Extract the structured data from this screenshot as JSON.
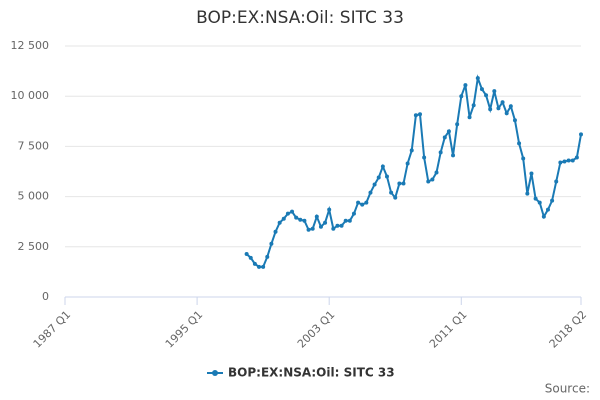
{
  "chart_data": {
    "type": "line",
    "title": "BOP:EX:NSA:Oil: SITC 33",
    "categories": [
      "1987 Q1",
      null,
      null,
      null,
      null,
      null,
      null,
      null,
      null,
      null,
      null,
      null,
      null,
      null,
      null,
      null,
      null,
      null,
      null,
      null,
      null,
      null,
      null,
      null,
      null,
      null,
      null,
      null,
      null,
      null,
      null,
      null,
      "1995 Q1",
      null,
      null,
      null,
      null,
      null,
      null,
      null,
      null,
      null,
      null,
      null,
      null,
      null,
      null,
      null,
      null,
      null,
      null,
      null,
      null,
      null,
      null,
      null,
      null,
      null,
      null,
      null,
      null,
      null,
      null,
      null,
      "2003 Q1",
      null,
      null,
      null,
      null,
      null,
      null,
      null,
      null,
      null,
      null,
      null,
      null,
      null,
      null,
      null,
      null,
      null,
      null,
      null,
      null,
      null,
      null,
      null,
      null,
      null,
      null,
      null,
      null,
      null,
      null,
      null,
      "2011 Q1",
      null,
      null,
      null,
      null,
      null,
      null,
      null,
      null,
      null,
      null,
      null,
      null,
      null,
      null,
      null,
      null,
      null,
      null,
      null,
      null,
      null,
      null,
      null,
      null,
      null,
      null,
      null,
      null,
      "2018 Q2"
    ],
    "series": [
      {
        "name": "BOP:EX:NSA:Oil: SITC 33",
        "color": "#1a7ab5",
        "values": [
          null,
          null,
          null,
          null,
          null,
          null,
          null,
          null,
          null,
          null,
          null,
          null,
          null,
          null,
          null,
          null,
          null,
          null,
          null,
          null,
          null,
          null,
          null,
          null,
          null,
          null,
          null,
          null,
          null,
          null,
          null,
          null,
          null,
          null,
          null,
          null,
          null,
          null,
          null,
          null,
          null,
          null,
          null,
          null,
          2140,
          1950,
          1650,
          1500,
          1500,
          2000,
          2650,
          3250,
          3700,
          3900,
          4150,
          4250,
          3950,
          3850,
          3800,
          3350,
          3400,
          4000,
          3500,
          3700,
          4350,
          3400,
          3550,
          3550,
          3800,
          3800,
          4150,
          4700,
          4600,
          4700,
          5200,
          5600,
          5950,
          6500,
          6000,
          5200,
          4950,
          5650,
          5650,
          6650,
          7300,
          9050,
          9100,
          6950,
          5750,
          5850,
          6200,
          7200,
          7950,
          8250,
          7050,
          8600,
          10000,
          10550,
          8950,
          9550,
          10900,
          10350,
          10050,
          9350,
          10250,
          9400,
          9700,
          9150,
          9500,
          8800,
          7650,
          6900,
          5150,
          6150,
          4900,
          4700,
          4000,
          4350,
          4800,
          5750,
          6700,
          6750,
          6800,
          6800,
          6950,
          8100
        ]
      }
    ],
    "ylim": [
      0,
      12500
    ],
    "yticks": [
      0,
      {
        "value": 2500,
        "label": "2 500"
      },
      {
        "value": 5000,
        "label": "5 000"
      },
      {
        "value": 7500,
        "label": "7 500"
      },
      {
        "value": 10000,
        "label": "10 000"
      },
      {
        "value": 12500,
        "label": "12 500"
      }
    ],
    "grid": true,
    "source": "Source:"
  }
}
